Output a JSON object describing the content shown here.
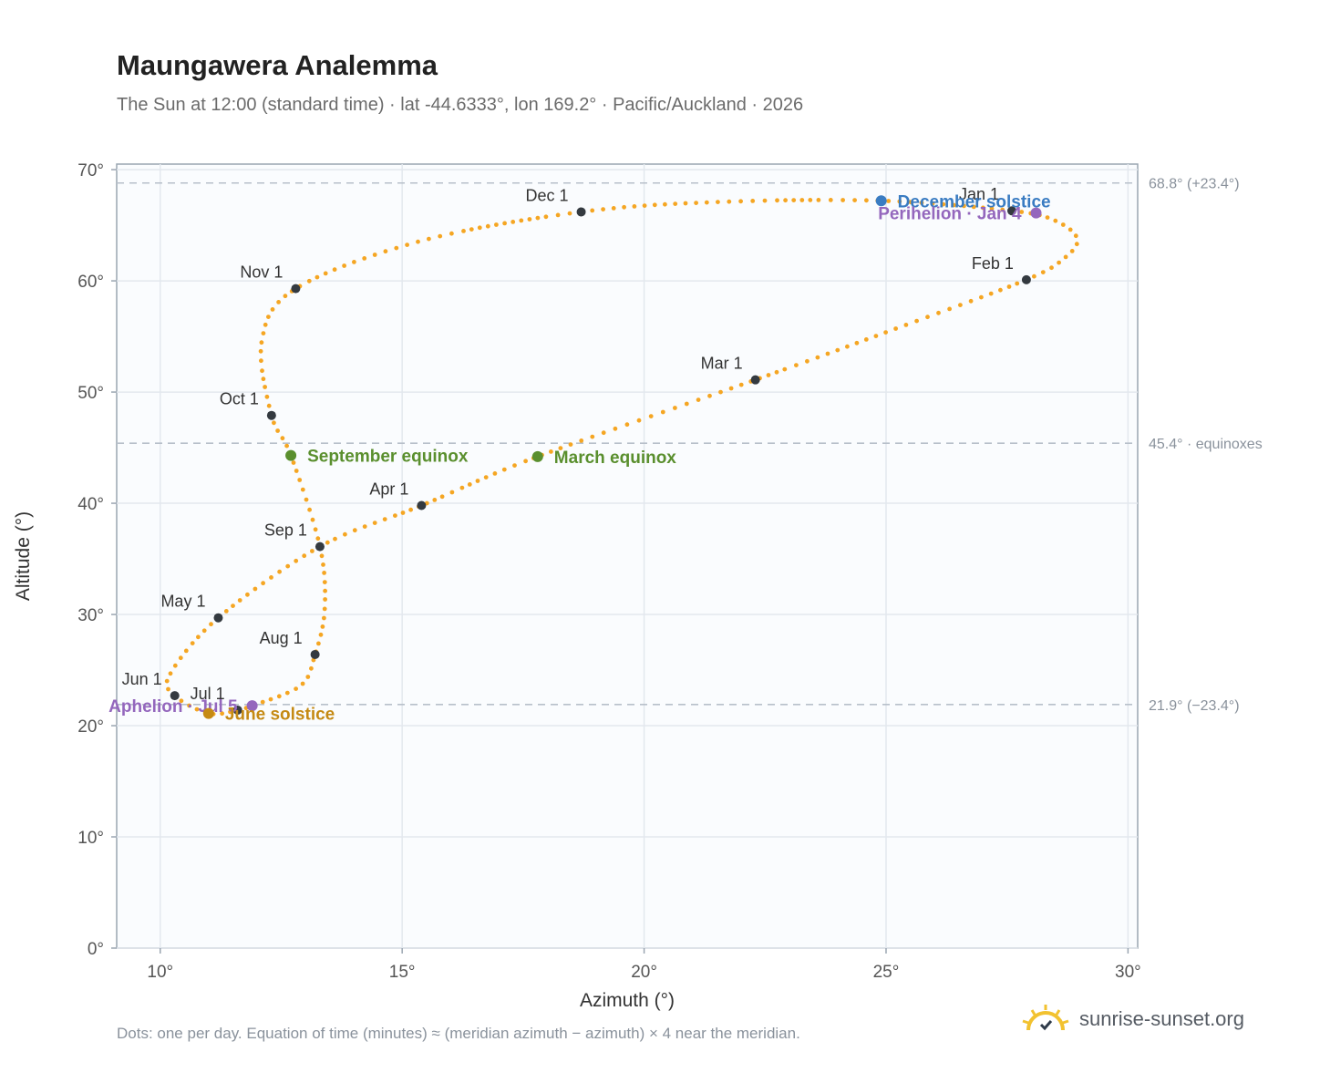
{
  "header": {
    "title": "Maungawera Analemma",
    "subtitle": "The Sun at 12:00 (standard time) · lat -44.6333°, lon 169.2° · Pacific/Auckland · 2026"
  },
  "footer": {
    "note": "Dots: one per day. Equation of time (minutes) ≈ (meridian azimuth − azimuth) × 4 near the meridian.",
    "brand": "sunrise-sunset.org"
  },
  "colors": {
    "curve": "#f5a623",
    "month_marker": "#343a40",
    "solstice_june": "#c58a14",
    "solstice_december": "#3a7cc2",
    "equinox": "#5a8f2e",
    "apsis": "#9467bd",
    "reference_line": "#b8c0ca"
  },
  "chart_data": {
    "type": "scatter",
    "xlabel": "Azimuth (°)",
    "ylabel": "Altitude (°)",
    "xlim": [
      9.1,
      30.2
    ],
    "ylim": [
      0,
      70.5
    ],
    "x_ticks": [
      10,
      15,
      20,
      25,
      30
    ],
    "y_ticks": [
      0,
      10,
      20,
      30,
      40,
      50,
      60,
      70
    ],
    "grid": true,
    "tick_suffix": "°",
    "reference_lines": [
      {
        "y": 68.8,
        "label": "68.8° (+23.4°)"
      },
      {
        "y": 45.4,
        "label": "45.4° · equinoxes"
      },
      {
        "y": 21.9,
        "label": "21.9° (−23.4°)"
      }
    ],
    "month_markers": [
      {
        "label": "Jan 1",
        "x": 27.6,
        "y": 66.3
      },
      {
        "label": "Feb 1",
        "x": 27.9,
        "y": 60.1
      },
      {
        "label": "Mar 1",
        "x": 22.3,
        "y": 51.1
      },
      {
        "label": "Apr 1",
        "x": 15.4,
        "y": 39.8
      },
      {
        "label": "May 1",
        "x": 11.2,
        "y": 29.7
      },
      {
        "label": "Jun 1",
        "x": 10.3,
        "y": 22.7
      },
      {
        "label": "Jul 1",
        "x": 11.6,
        "y": 21.4
      },
      {
        "label": "Aug 1",
        "x": 13.2,
        "y": 26.4
      },
      {
        "label": "Sep 1",
        "x": 13.3,
        "y": 36.1
      },
      {
        "label": "Oct 1",
        "x": 12.3,
        "y": 47.9
      },
      {
        "label": "Nov 1",
        "x": 12.8,
        "y": 59.3
      },
      {
        "label": "Dec 1",
        "x": 18.7,
        "y": 66.2
      }
    ],
    "events": [
      {
        "label": "December solstice",
        "x": 24.9,
        "y": 67.2,
        "kind": "solstice_december"
      },
      {
        "label": "Perihelion · Jan 4",
        "x": 28.1,
        "y": 66.1,
        "kind": "apsis"
      },
      {
        "label": "September equinox",
        "x": 12.7,
        "y": 44.3,
        "kind": "equinox"
      },
      {
        "label": "March equinox",
        "x": 17.8,
        "y": 44.2,
        "kind": "equinox"
      },
      {
        "label": "Aphelion · Jul 5",
        "x": 11.9,
        "y": 21.8,
        "kind": "apsis"
      },
      {
        "label": "June solstice",
        "x": 11.0,
        "y": 21.1,
        "kind": "solstice_june"
      }
    ],
    "analemma_path": [
      {
        "x": 27.6,
        "y": 66.3
      },
      {
        "x": 28.5,
        "y": 65.4
      },
      {
        "x": 28.95,
        "y": 63.8
      },
      {
        "x": 28.7,
        "y": 62.1
      },
      {
        "x": 27.9,
        "y": 60.1
      },
      {
        "x": 25.2,
        "y": 55.7
      },
      {
        "x": 22.3,
        "y": 51.1
      },
      {
        "x": 17.8,
        "y": 44.2
      },
      {
        "x": 15.4,
        "y": 39.8
      },
      {
        "x": 13.3,
        "y": 36.1
      },
      {
        "x": 11.2,
        "y": 29.7
      },
      {
        "x": 10.2,
        "y": 24.6
      },
      {
        "x": 10.3,
        "y": 22.7
      },
      {
        "x": 11.0,
        "y": 21.1
      },
      {
        "x": 11.6,
        "y": 21.4
      },
      {
        "x": 11.9,
        "y": 21.8
      },
      {
        "x": 12.9,
        "y": 23.6
      },
      {
        "x": 13.2,
        "y": 26.4
      },
      {
        "x": 13.4,
        "y": 30.5
      },
      {
        "x": 13.3,
        "y": 36.1
      },
      {
        "x": 12.7,
        "y": 44.3
      },
      {
        "x": 12.3,
        "y": 47.9
      },
      {
        "x": 12.1,
        "y": 54.6
      },
      {
        "x": 12.8,
        "y": 59.3
      },
      {
        "x": 15.4,
        "y": 63.6
      },
      {
        "x": 18.7,
        "y": 66.2
      },
      {
        "x": 21.6,
        "y": 67.1
      },
      {
        "x": 24.9,
        "y": 67.2
      },
      {
        "x": 27.6,
        "y": 66.3
      }
    ]
  }
}
